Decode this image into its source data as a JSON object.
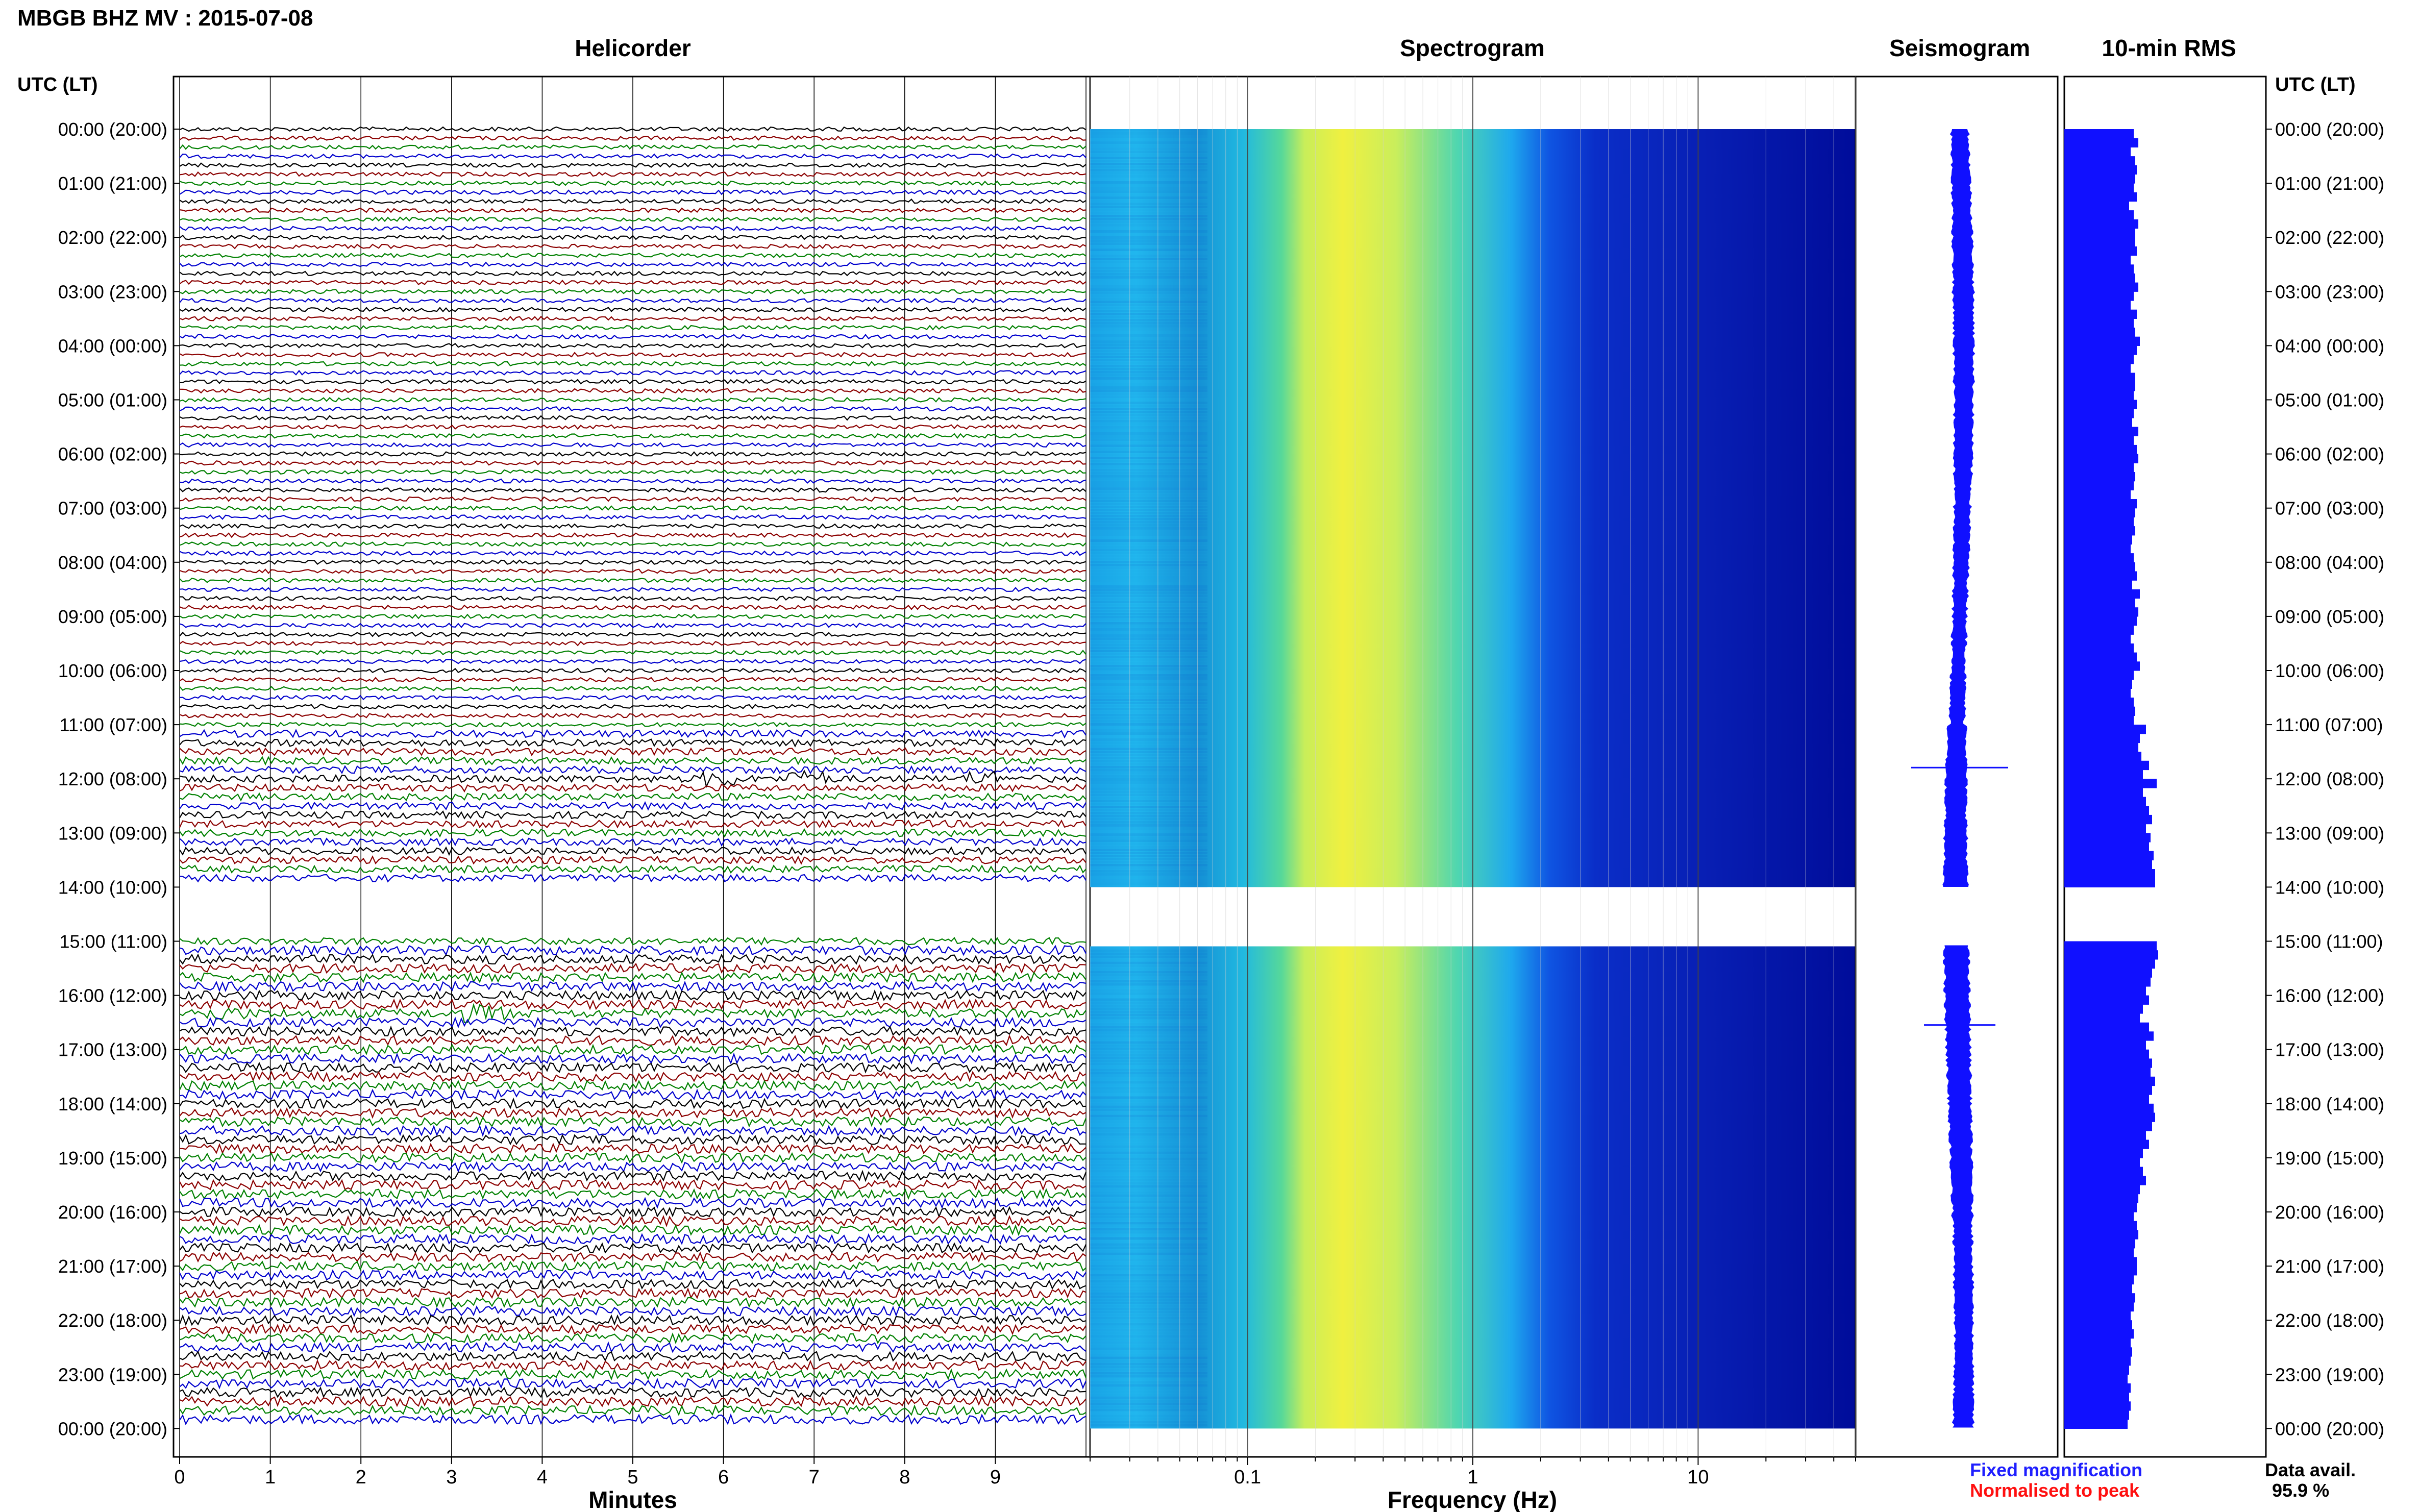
{
  "header": {
    "title": "MBGB BHZ MV : 2015-07-08",
    "utc_label": "UTC (LT)"
  },
  "panels": {
    "helicorder": "Helicorder",
    "spectrogram": "Spectrogram",
    "seismogram": "Seismogram",
    "rms": "10-min RMS"
  },
  "axes": {
    "minutes_label": "Minutes",
    "frequency_label": "Frequency (Hz)",
    "minute_ticks": [
      "0",
      "1",
      "2",
      "3",
      "4",
      "5",
      "6",
      "7",
      "8",
      "9"
    ],
    "frequency_ticks": [
      "0.1",
      "1",
      "10"
    ]
  },
  "time_labels": [
    "00:00 (20:00)",
    "01:00 (21:00)",
    "02:00 (22:00)",
    "03:00 (23:00)",
    "04:00 (00:00)",
    "05:00 (01:00)",
    "06:00 (02:00)",
    "07:00 (03:00)",
    "08:00 (04:00)",
    "09:00 (05:00)",
    "10:00 (06:00)",
    "11:00 (07:00)",
    "12:00 (08:00)",
    "13:00 (09:00)",
    "14:00 (10:00)",
    "15:00 (11:00)",
    "16:00 (12:00)",
    "17:00 (13:00)",
    "18:00 (14:00)",
    "19:00 (15:00)",
    "20:00 (16:00)",
    "21:00 (17:00)",
    "22:00 (18:00)",
    "23:00 (19:00)",
    "00:00 (20:00)"
  ],
  "legend": {
    "fixed": "Fixed magnification",
    "normalised": "Normalised to peak",
    "fixed_color": "#1f1fff",
    "normalised_color": "#ff1010"
  },
  "availability": {
    "label": "Data avail.",
    "value": "95.9 %"
  },
  "colors": {
    "trace_cycle": [
      "#000000",
      "#8b0000",
      "#008000",
      "#0000cd"
    ],
    "rms_bar": "#1010ff",
    "seismogram": "#1010ff",
    "spectrogram_low": "#000c9a",
    "spectrogram_high": "#f0f040"
  },
  "chart_data": {
    "type": "heatmap",
    "title": "MBGB BHZ MV : 2015-07-08",
    "data_gap_utc": [
      "14:00",
      "15:00"
    ],
    "rms_scale": "linear",
    "frequency_scale": "log",
    "frequency_range_hz": [
      0.02,
      50
    ],
    "minutes_range": [
      0,
      10
    ],
    "rms_per_10min": [
      0.82,
      0.85,
      0.8,
      0.83,
      0.84,
      0.83,
      0.82,
      0.84,
      0.79,
      0.82,
      0.85,
      0.83,
      0.83,
      0.84,
      0.8,
      0.82,
      0.83,
      0.85,
      0.82,
      0.8,
      0.84,
      0.82,
      0.83,
      0.86,
      0.84,
      0.82,
      0.8,
      0.83,
      0.83,
      0.82,
      0.84,
      0.82,
      0.81,
      0.85,
      0.82,
      0.84,
      0.85,
      0.82,
      0.83,
      0.82,
      0.8,
      0.84,
      0.83,
      0.82,
      0.83,
      0.81,
      0.8,
      0.82,
      0.83,
      0.84,
      0.81,
      0.86,
      0.83,
      0.85,
      0.84,
      0.82,
      0.8,
      0.82,
      0.84,
      0.86,
      0.82,
      0.81,
      0.8,
      0.82,
      0.83,
      0.82,
      0.9,
      0.86,
      0.85,
      0.87,
      0.92,
      0.88,
      0.97,
      0.88,
      0.9,
      0.92,
      0.94,
      0.9,
      0.93,
      0.92,
      0.95,
      0.94,
      0.96,
      0.96,
      null,
      null,
      null,
      null,
      null,
      null,
      0.97,
      0.98,
      0.96,
      0.94,
      0.93,
      0.9,
      0.92,
      0.88,
      0.86,
      0.92,
      0.95,
      0.9,
      0.92,
      0.94,
      0.93,
      0.96,
      0.94,
      0.92,
      0.95,
      0.96,
      0.94,
      0.9,
      0.92,
      0.88,
      0.86,
      0.88,
      0.9,
      0.86,
      0.85,
      0.84,
      0.82,
      0.84,
      0.85,
      0.83,
      0.82,
      0.84,
      0.84,
      0.82,
      0.81,
      0.83,
      0.82,
      0.8,
      0.81,
      0.82,
      0.8,
      0.81,
      0.8,
      0.79,
      0.78,
      0.8,
      0.79,
      0.8,
      0.79,
      0.78
    ]
  }
}
